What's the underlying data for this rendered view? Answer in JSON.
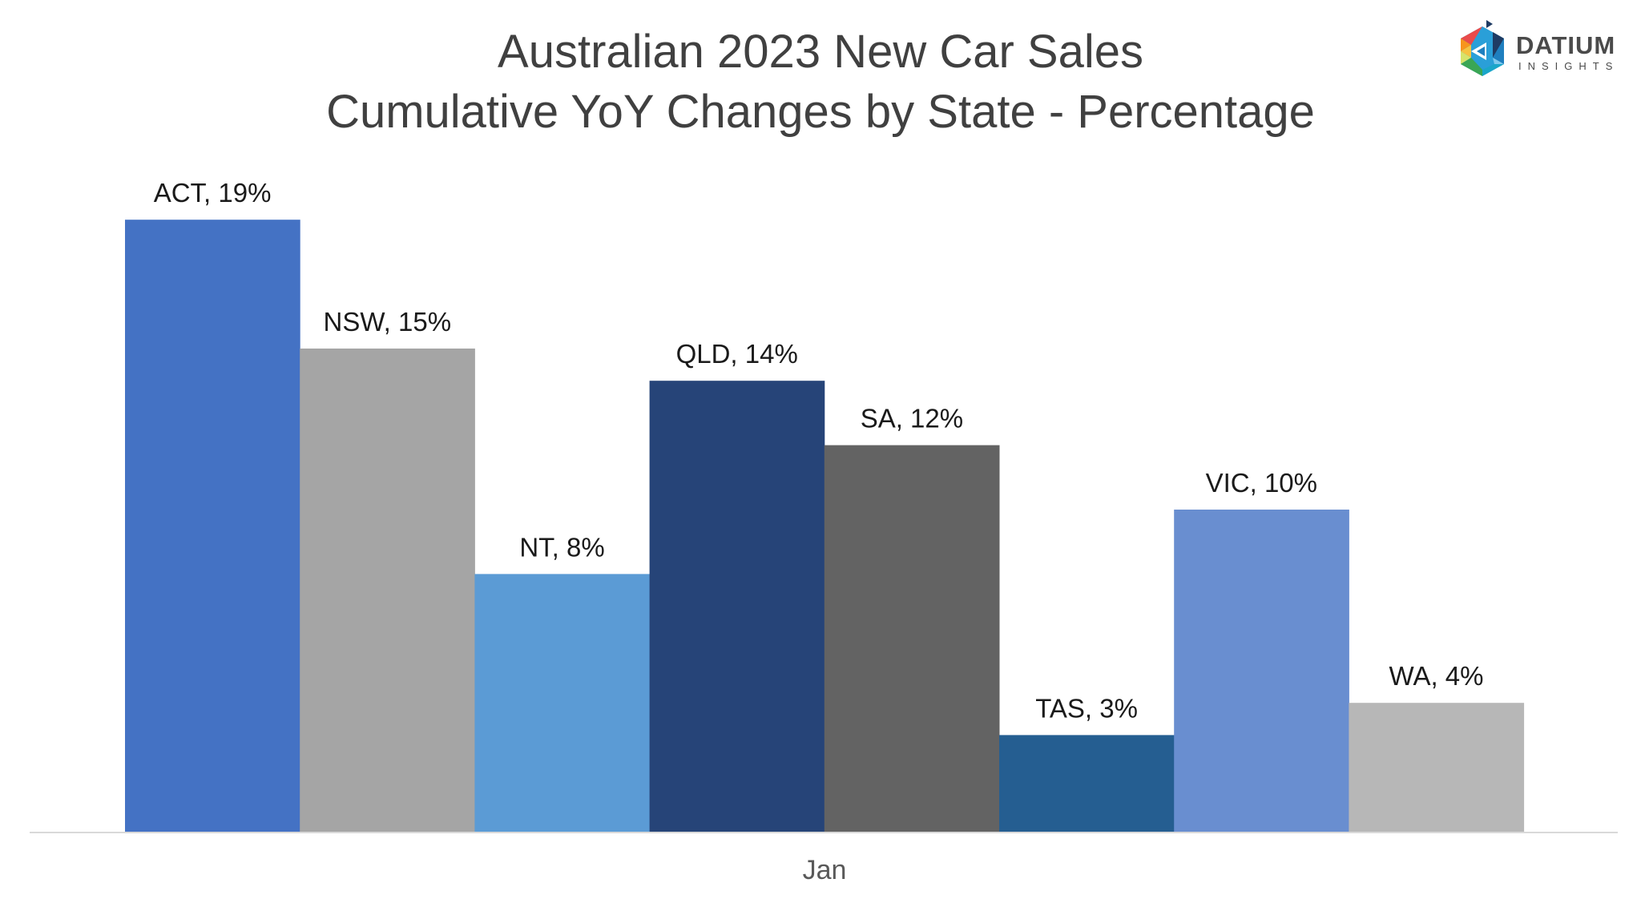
{
  "chart_data": {
    "type": "bar",
    "title": "Australian 2023 New Car Sales",
    "subtitle": "Cumulative YoY Changes by State - Percentage",
    "categories": [
      "Jan"
    ],
    "xlabel": "",
    "ylabel": "",
    "ylim": [
      0,
      20
    ],
    "grid": false,
    "legend": "none",
    "series": [
      {
        "name": "ACT",
        "values": [
          19
        ],
        "label": "ACT, 19%",
        "color": "#4472C4"
      },
      {
        "name": "NSW",
        "values": [
          15
        ],
        "label": "NSW, 15%",
        "color": "#A5A5A5"
      },
      {
        "name": "NT",
        "values": [
          8
        ],
        "label": "NT, 8%",
        "color": "#5B9BD5"
      },
      {
        "name": "QLD",
        "values": [
          14
        ],
        "label": "QLD, 14%",
        "color": "#264478"
      },
      {
        "name": "SA",
        "values": [
          12
        ],
        "label": "SA, 12%",
        "color": "#636363"
      },
      {
        "name": "TAS",
        "values": [
          3
        ],
        "label": "TAS, 3%",
        "color": "#255E91"
      },
      {
        "name": "VIC",
        "values": [
          10
        ],
        "label": "VIC, 10%",
        "color": "#698ED0"
      },
      {
        "name": "WA",
        "values": [
          4
        ],
        "label": "WA, 4%",
        "color": "#B7B7B7"
      }
    ]
  },
  "logo": {
    "word": "DATIUM",
    "sub": "INSIGHTS"
  }
}
